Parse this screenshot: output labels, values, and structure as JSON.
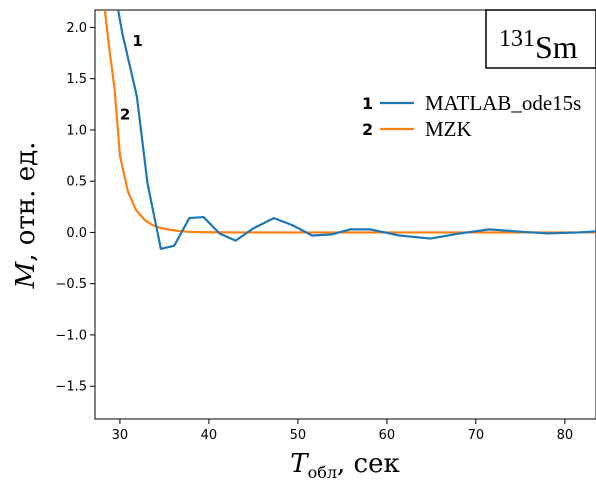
{
  "chart_data": {
    "type": "line",
    "xlabel_main": "T",
    "xlabel_sub": "обл",
    "xlabel_rest": ", сек",
    "ylabel_main": "M",
    "ylabel_rest": ", отн. ед.",
    "xlim": [
      27.2,
      83.5
    ],
    "ylim": [
      -1.82,
      2.17
    ],
    "x_ticks": [
      30,
      40,
      50,
      60,
      70,
      80
    ],
    "x_tick_labels": [
      "30",
      "40",
      "50",
      "60",
      "70",
      "80"
    ],
    "y_ticks": [
      -1.5,
      -1.0,
      -0.5,
      0.0,
      0.5,
      1.0,
      1.5,
      2.0
    ],
    "y_tick_labels": [
      "−1.5",
      "−1.0",
      "−0.5",
      "0.0",
      "0.5",
      "1.0",
      "1.5",
      "2.0"
    ],
    "annotation": {
      "sup": "131",
      "text": "Sm"
    },
    "legend": {
      "placement": "top-right"
    },
    "series": [
      {
        "name": "MATLAB_ode15s",
        "number": "1",
        "color": "#1f77b4",
        "x": [
          29.8,
          30.3,
          31.9,
          33.1,
          34.6,
          36.1,
          37.8,
          39.4,
          41.2,
          43.0,
          45.0,
          47.3,
          49.4,
          51.6,
          53.8,
          55.9,
          58.1,
          61.4,
          64.9,
          68.2,
          71.5,
          74.6,
          78.1,
          81.6,
          83.5
        ],
        "y": [
          2.17,
          1.93,
          1.33,
          0.48,
          -0.16,
          -0.13,
          0.14,
          0.15,
          -0.01,
          -0.08,
          0.04,
          0.14,
          0.07,
          -0.03,
          -0.02,
          0.03,
          0.03,
          -0.03,
          -0.06,
          -0.01,
          0.03,
          0.01,
          -0.01,
          0.0,
          0.01
        ]
      },
      {
        "name": "MZK",
        "number": "2",
        "color": "#ff7f0e",
        "x": [
          28.3,
          28.8,
          29.4,
          30.0,
          30.9,
          31.8,
          32.8,
          33.7,
          34.7,
          35.7,
          36.8,
          38.0,
          40.0,
          43.0,
          50.0,
          60.0,
          70.0,
          83.5
        ],
        "y": [
          2.17,
          1.8,
          1.4,
          0.75,
          0.4,
          0.22,
          0.12,
          0.07,
          0.04,
          0.025,
          0.012,
          0.005,
          0.002,
          0.0,
          0.0,
          0.0,
          0.0,
          0.0
        ]
      }
    ],
    "curve_labels": [
      {
        "text": "1",
        "x": 31.4,
        "y": 1.82
      },
      {
        "text": "2",
        "x": 30.0,
        "y": 1.1
      }
    ]
  }
}
